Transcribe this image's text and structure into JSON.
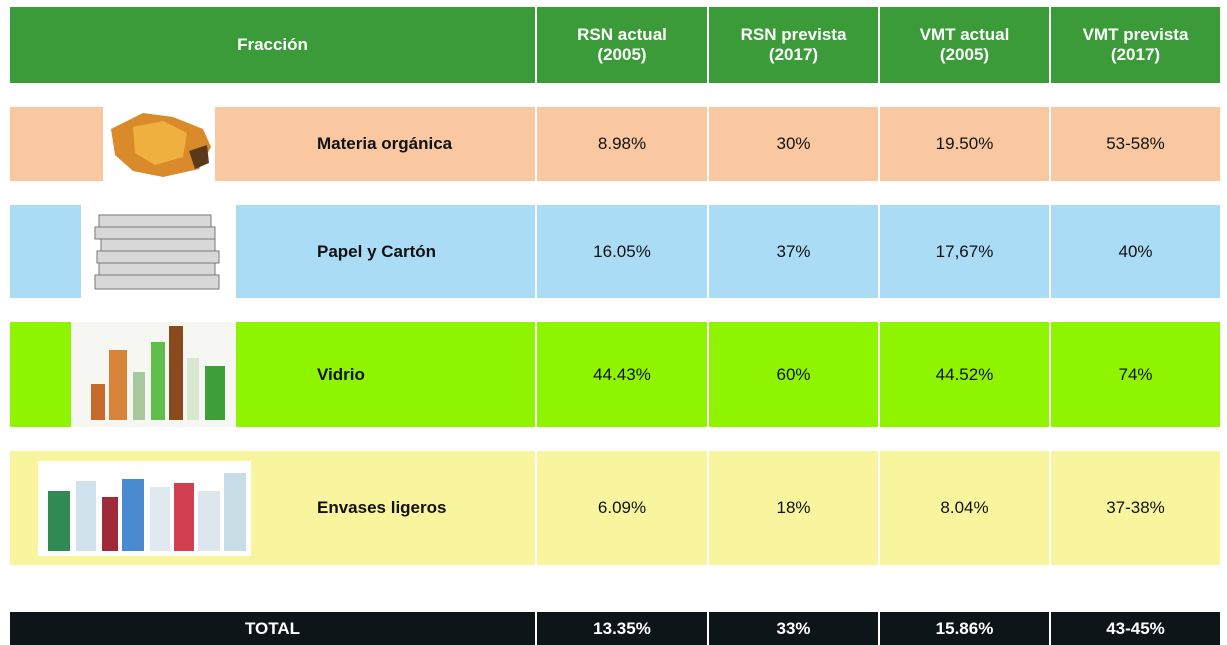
{
  "table": {
    "header": [
      "Fracción",
      "RSN actual\n(2005)",
      "RSN prevista\n(2017)",
      "VMT actual\n(2005)",
      "VMT prevista\n(2017)"
    ],
    "rows": [
      {
        "label": "Materia orgánica",
        "cells": [
          "8.98%",
          "30%",
          "19.50%",
          "53-58%"
        ]
      },
      {
        "label": "Papel y Cartón",
        "cells": [
          "16.05%",
          "37%",
          "17,67%",
          "40%"
        ]
      },
      {
        "label": "Vidrio",
        "cells": [
          "44.43%",
          "60%",
          "44.52%",
          "74%"
        ]
      },
      {
        "label": "Envases ligeros",
        "cells": [
          "6.09%",
          "18%",
          "8.04%",
          "37-38%"
        ]
      }
    ],
    "total": {
      "label": "TOTAL",
      "cells": [
        "13.35%",
        "33%",
        "15.86%",
        "43-45%"
      ]
    }
  }
}
